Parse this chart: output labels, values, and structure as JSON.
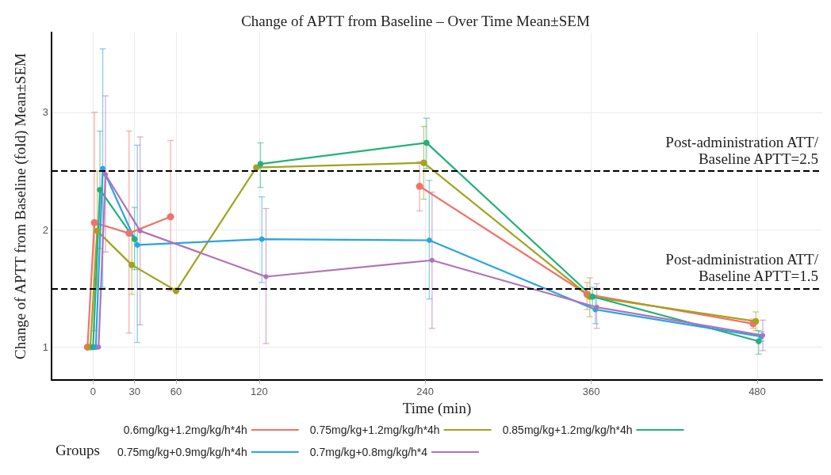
{
  "chart_data": {
    "type": "line",
    "title": "Change of APTT from Baseline – Over Time Mean±SEM",
    "xlabel": "Time (min)",
    "ylabel": "Change of APTT from Baseline (fold) Mean±SEM",
    "legend_title": "Groups",
    "xlim": [
      -30,
      527
    ],
    "xticks": [
      0,
      30,
      60,
      120,
      240,
      360,
      480
    ],
    "ylim": [
      0.72,
      3.68
    ],
    "yticks": [
      1,
      2,
      3
    ],
    "grid": true,
    "legend": "bottom",
    "marker": "circle",
    "line_style": "solid",
    "ref_lines": [
      {
        "axis": "y",
        "value": 2.5,
        "label": "Post-administration ATT/\nBaseline APTT=2.5",
        "color": "#000000",
        "line_style": "dashed"
      },
      {
        "axis": "y",
        "value": 1.5,
        "label": "Post-administration ATT/\nBaseline APTT=1.5",
        "color": "#000000",
        "line_style": "dashed"
      }
    ],
    "series": [
      {
        "name": "0.6mg/kg+1.2mg/kg/h*4h",
        "color": "#f0736b",
        "x": [
          -4,
          1,
          26,
          56,
          116,
          236,
          357,
          477
        ],
        "values": [
          1.0,
          2.06,
          1.97,
          2.11,
          null,
          2.37,
          1.45,
          1.2
        ],
        "errors": [
          null,
          [
            1.14,
            3.0
          ],
          [
            1.12,
            2.84
          ],
          [
            1.48,
            2.76
          ],
          null,
          [
            2.16,
            2.58
          ],
          [
            1.32,
            1.55
          ],
          [
            1.16,
            1.24
          ]
        ]
      },
      {
        "name": "0.75mg/kg+1.2mg/kg/h*4h",
        "color": "#a3a21f",
        "x": [
          -2,
          3,
          28,
          60,
          118,
          239,
          359,
          479
        ],
        "values": [
          1.0,
          1.99,
          1.7,
          1.48,
          2.53,
          2.57,
          1.43,
          1.22
        ],
        "errors": [
          null,
          [
            1.49,
            2.5
          ],
          [
            1.45,
            1.95
          ],
          null,
          null,
          [
            2.26,
            2.88
          ],
          [
            1.26,
            1.59
          ],
          [
            1.14,
            1.3
          ]
        ]
      },
      {
        "name": "0.85mg/kg+1.2mg/kg/h*4h",
        "color": "#24b07b",
        "x": [
          0,
          5,
          30,
          61,
          121,
          241,
          361,
          481
        ],
        "values": [
          1.0,
          2.34,
          1.92,
          null,
          2.56,
          2.74,
          1.43,
          1.05
        ],
        "errors": [
          null,
          [
            1.84,
            2.84
          ],
          [
            1.66,
            2.19
          ],
          null,
          [
            2.36,
            2.74
          ],
          [
            2.52,
            2.95
          ],
          [
            1.35,
            1.51
          ],
          [
            0.94,
            1.14
          ]
        ]
      },
      {
        "name": "0.75mg/kg+0.9mg/kg/h*4h",
        "color": "#2aa4df",
        "x": [
          2,
          7,
          32,
          122,
          243,
          363,
          483
        ],
        "values": [
          1.0,
          2.52,
          1.87,
          1.92,
          1.91,
          1.32,
          1.09
        ],
        "errors": [
          null,
          [
            1.51,
            3.54
          ],
          [
            1.04,
            2.72
          ],
          [
            1.55,
            2.28
          ],
          [
            1.41,
            2.42
          ],
          [
            1.2,
            1.44
          ],
          [
            1.05,
            1.13
          ]
        ]
      },
      {
        "name": "0.7mg/kg+0.8mg/kg/h*4",
        "color": "#b073b5",
        "x": [
          4,
          9,
          34,
          125,
          245,
          364,
          484
        ],
        "values": [
          1.0,
          2.47,
          1.99,
          1.6,
          1.74,
          1.34,
          1.1
        ],
        "errors": [
          null,
          [
            1.81,
            3.14
          ],
          [
            1.19,
            2.79
          ],
          [
            1.03,
            2.18
          ],
          [
            1.16,
            2.32
          ],
          [
            1.16,
            1.54
          ],
          [
            0.97,
            1.23
          ]
        ]
      }
    ]
  }
}
